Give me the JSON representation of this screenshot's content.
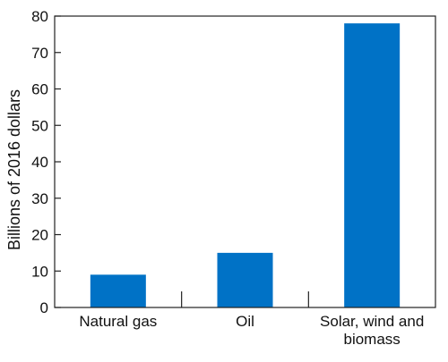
{
  "chart_data": {
    "type": "bar",
    "categories": [
      "Natural gas",
      "Oil",
      "Solar, wind and biomass"
    ],
    "category_label_lines": [
      [
        "Natural gas"
      ],
      [
        "Oil"
      ],
      [
        "Solar, wind and",
        "biomass"
      ]
    ],
    "values": [
      9,
      15,
      78
    ],
    "title": "",
    "xlabel": "",
    "ylabel": "Billions of 2016 dollars",
    "ylim": [
      0,
      80
    ],
    "yticks": [
      0,
      10,
      20,
      30,
      40,
      50,
      60,
      70,
      80
    ],
    "grid": false,
    "bar_color": "#0072c6"
  }
}
